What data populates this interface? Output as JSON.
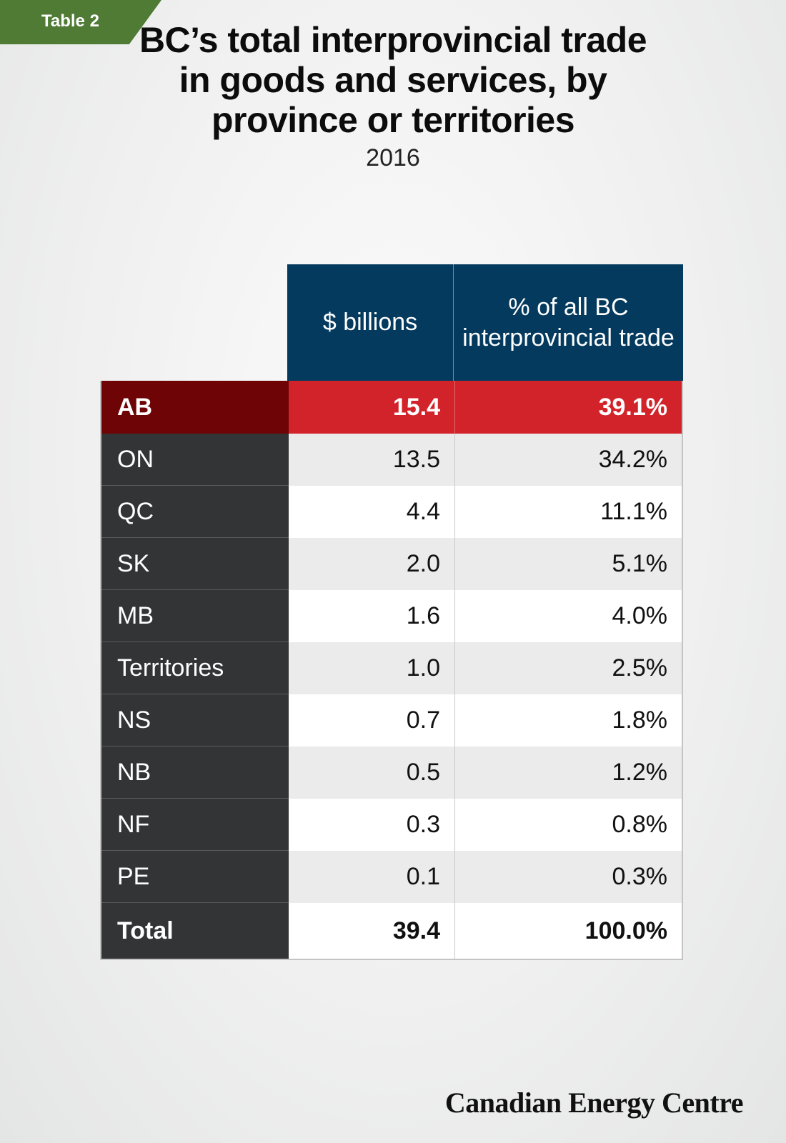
{
  "tag": "Table 2",
  "title": "BC’s total interprovincial trade in goods and services, by province or territories",
  "subtitle": "2016",
  "logo": "Canadian Energy Centre",
  "colors": {
    "header_blue": "#043a5e",
    "highlight_red": "#d2232a",
    "highlight_dark_red": "#6e0405",
    "label_dark": "#333436",
    "tag_green": "#4f7b35"
  },
  "chart_data": {
    "type": "table",
    "columns": [
      "$ billions",
      "% of all BC interprovincial trade"
    ],
    "rows": [
      {
        "name": "AB",
        "value": "15.4",
        "pct": "39.1%",
        "highlight": true
      },
      {
        "name": "ON",
        "value": "13.5",
        "pct": "34.2%"
      },
      {
        "name": "QC",
        "value": "4.4",
        "pct": "11.1%"
      },
      {
        "name": "SK",
        "value": "2.0",
        "pct": "5.1%"
      },
      {
        "name": "MB",
        "value": "1.6",
        "pct": "4.0%"
      },
      {
        "name": "Territories",
        "value": "1.0",
        "pct": "2.5%"
      },
      {
        "name": "NS",
        "value": "0.7",
        "pct": "1.8%"
      },
      {
        "name": "NB",
        "value": "0.5",
        "pct": "1.2%"
      },
      {
        "name": "NF",
        "value": "0.3",
        "pct": "0.8%"
      },
      {
        "name": "PE",
        "value": "0.1",
        "pct": "0.3%"
      }
    ],
    "total": {
      "name": "Total",
      "value": "39.4",
      "pct": "100.0%"
    }
  }
}
